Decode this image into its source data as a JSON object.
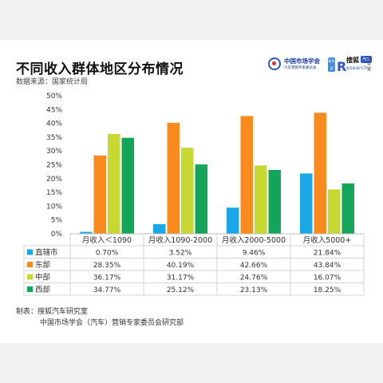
{
  "header": {
    "title": "不同收入群体地区分布情况",
    "source": "数据来源：国家统计局"
  },
  "logo": {
    "org_name": "中国市场学会",
    "org_sub": "汽车营销专家委员会",
    "divider_text": "研究部",
    "brand_letter": "R",
    "brand_name": "搜狐",
    "brand_badge": "汽车",
    "brand_research": "esearch",
    "brand_side": "研究室"
  },
  "footer": {
    "label": "制表：",
    "line1": "搜狐汽车研究室",
    "line2": "中国市场学会（汽车）营销专家委员会研究部"
  },
  "colors": {
    "直辖市": "#1aa7e8",
    "东部": "#f98b1e",
    "中部": "#c7d831",
    "西部": "#13a65b"
  },
  "chart_data": {
    "type": "bar",
    "title": "不同收入群体地区分布情况",
    "categories": [
      "月收入＜1090",
      "月收入1090-2000",
      "月收入2000-5000",
      "月收入5000+"
    ],
    "yticks": [
      "0%",
      "5%",
      "10%",
      "15%",
      "20%",
      "25%",
      "30%",
      "35%",
      "40%",
      "45%",
      "50%"
    ],
    "ylim": [
      0,
      50
    ],
    "grid": false,
    "legend": "table-below",
    "series": [
      {
        "name": "直辖市",
        "values": [
          0.7,
          3.52,
          9.46,
          21.84
        ],
        "labels": [
          "0.70%",
          "3.52%",
          "9.46%",
          "21.84%"
        ]
      },
      {
        "name": "东部",
        "values": [
          28.35,
          40.19,
          42.66,
          43.84
        ],
        "labels": [
          "28.35%",
          "40.19%",
          "42.66%",
          "43.84%"
        ]
      },
      {
        "name": "中部",
        "values": [
          36.17,
          31.17,
          24.76,
          16.07
        ],
        "labels": [
          "36.17%",
          "31.17%",
          "24.76%",
          "16.07%"
        ]
      },
      {
        "name": "西部",
        "values": [
          34.77,
          25.12,
          23.13,
          18.25
        ],
        "labels": [
          "34.77%",
          "25.12%",
          "23.13%",
          "18.25%"
        ]
      }
    ]
  }
}
